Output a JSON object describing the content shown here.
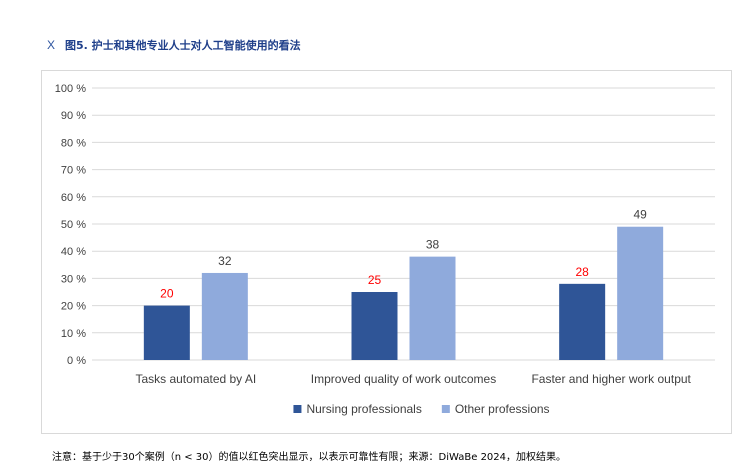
{
  "header": {
    "close_glyph": "X",
    "title": "图5. 护士和其他专业人士对人工智能使用的看法"
  },
  "note": "注意：基于少于30个案例（n < 30）的值以红色突出显示，以表示可靠性有限；来源：DiWaBe 2024，加权结果。",
  "chart_data": {
    "type": "bar",
    "categories": [
      "Tasks automated by AI",
      "Improved quality of work outcomes",
      "Faster and higher work output"
    ],
    "series": [
      {
        "name": "Nursing professionals",
        "values": [
          20,
          25,
          28
        ],
        "color": "#2f5597",
        "label_color": "#ff0000"
      },
      {
        "name": "Other professions",
        "values": [
          32,
          38,
          49
        ],
        "color": "#8faadc",
        "label_color": "#404040"
      }
    ],
    "ylim": [
      0,
      100
    ],
    "yticks": [
      0,
      10,
      20,
      30,
      40,
      50,
      60,
      70,
      80,
      90,
      100
    ],
    "ytick_labels": [
      "0 %",
      "10 %",
      "20 %",
      "30 %",
      "40 %",
      "50 %",
      "60 %",
      "70 %",
      "80 %",
      "90 %",
      "100 %"
    ],
    "grid": true,
    "legend_position": "bottom-center"
  }
}
